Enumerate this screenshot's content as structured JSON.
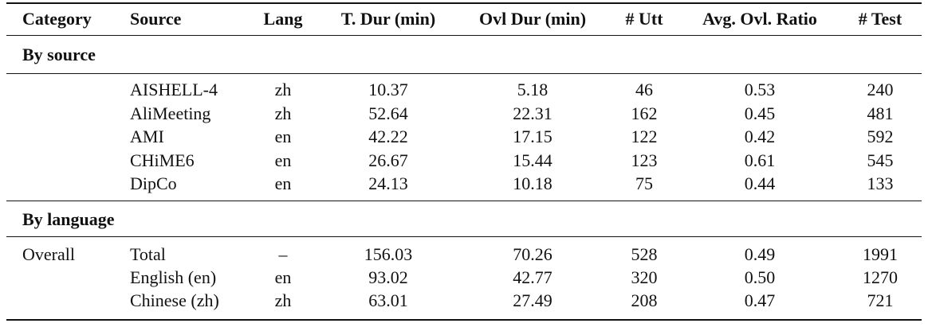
{
  "table": {
    "header": [
      "Category",
      "Source",
      "Lang",
      "T. Dur (min)",
      "Ovl Dur (min)",
      "# Utt",
      "Avg. Ovl. Ratio",
      "# Test"
    ],
    "sections": [
      {
        "title": "By source",
        "rows": [
          [
            "AISHELL-4",
            "zh",
            "10.37",
            "5.18",
            "46",
            "0.53",
            "240"
          ],
          [
            "AliMeeting",
            "zh",
            "52.64",
            "22.31",
            "162",
            "0.45",
            "481"
          ],
          [
            "AMI",
            "en",
            "42.22",
            "17.15",
            "122",
            "0.42",
            "592"
          ],
          [
            "CHiME6",
            "en",
            "26.67",
            "15.44",
            "123",
            "0.61",
            "545"
          ],
          [
            "DipCo",
            "en",
            "24.13",
            "10.18",
            "75",
            "0.44",
            "133"
          ]
        ]
      },
      {
        "title": "By language",
        "category": "Overall",
        "rows": [
          [
            "Total",
            "–",
            "156.03",
            "70.26",
            "528",
            "0.49",
            "1991"
          ],
          [
            "English (en)",
            "en",
            "93.02",
            "42.77",
            "320",
            "0.50",
            "1270"
          ],
          [
            "Chinese (zh)",
            "zh",
            "63.01",
            "27.49",
            "208",
            "0.47",
            "721"
          ]
        ]
      }
    ]
  }
}
